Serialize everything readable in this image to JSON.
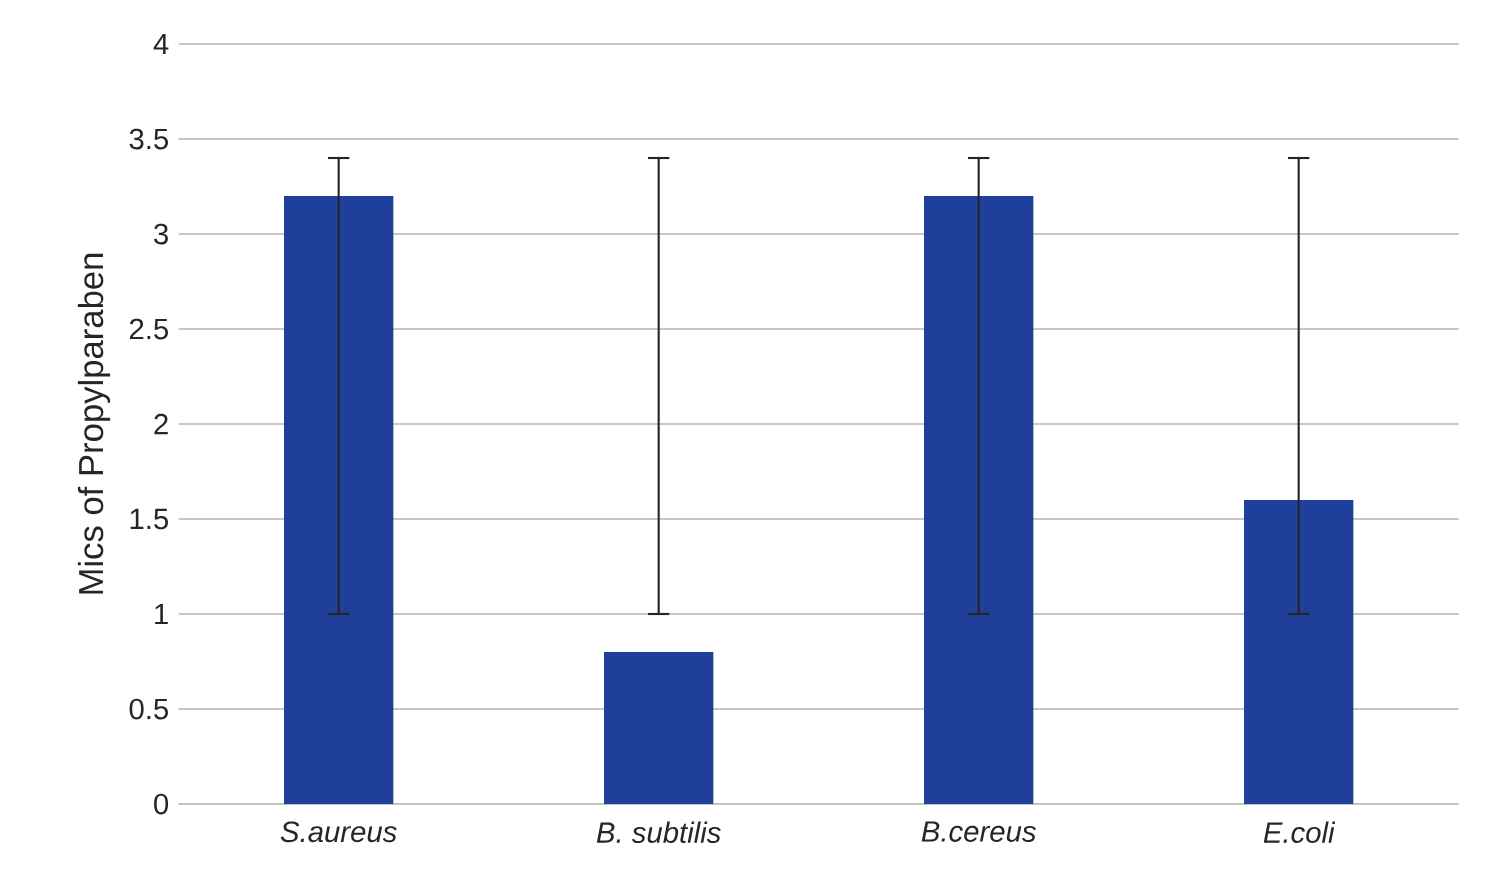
{
  "chart_data": {
    "type": "bar",
    "ylabel": "Mics of Propylparaben",
    "categories": [
      "S.aureus",
      "B. subtilis",
      "B.cereus",
      "E.coli"
    ],
    "values": [
      3.2,
      0.8,
      3.2,
      1.6
    ],
    "errors": [
      [
        1,
        3.4
      ],
      [
        1,
        3.4
      ],
      [
        1,
        3.4
      ],
      [
        1,
        3.4
      ]
    ],
    "color": "#203f9b",
    "ylim": [
      0,
      4
    ],
    "yticks": [
      0,
      0.5,
      1,
      1.5,
      2,
      2.5,
      3,
      3.5,
      4
    ],
    "grid": "y"
  }
}
